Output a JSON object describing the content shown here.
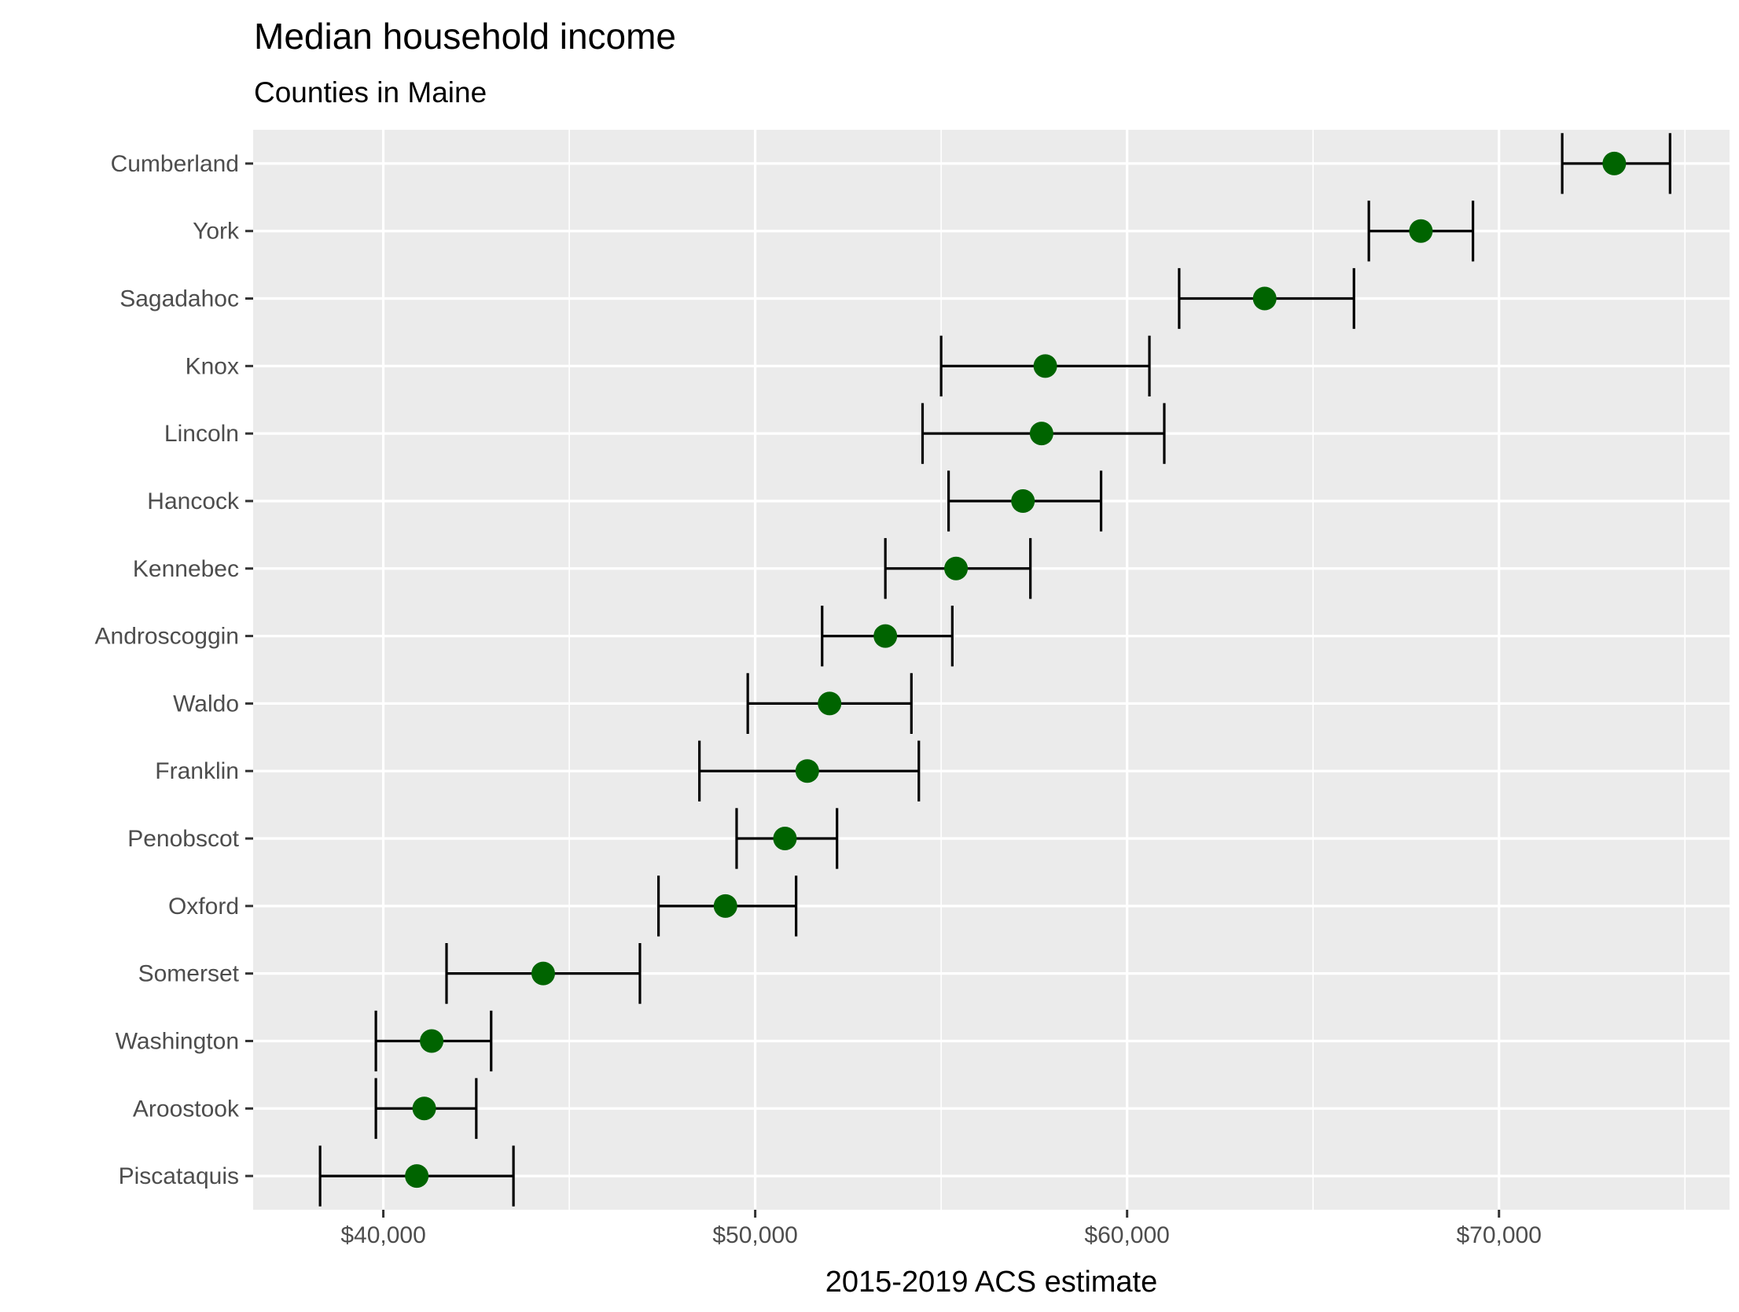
{
  "chart_data": {
    "type": "scatter",
    "variant": "dot-plot-with-error-bars",
    "title": "Median household income",
    "subtitle": "Counties in Maine",
    "xlabel": "2015-2019 ACS estimate",
    "ylabel": "",
    "xlim": [
      36500,
      76200
    ],
    "xticks": [
      40000,
      50000,
      60000,
      70000
    ],
    "xtick_labels": [
      "$40,000",
      "$50,000",
      "$60,000",
      "$70,000"
    ],
    "xminor": [
      45000,
      55000,
      65000,
      75000
    ],
    "grid": true,
    "point_color": "#006400",
    "errorbar_color": "#000000",
    "panel_background": "#ebebeb",
    "gridline_color": "#ffffff",
    "series": [
      {
        "categories": [
          "Cumberland",
          "York",
          "Sagadahoc",
          "Knox",
          "Lincoln",
          "Hancock",
          "Kennebec",
          "Androscoggin",
          "Waldo",
          "Franklin",
          "Penobscot",
          "Oxford",
          "Somerset",
          "Washington",
          "Aroostook",
          "Piscataquis"
        ],
        "values": [
          73100,
          67900,
          63700,
          57800,
          57700,
          57200,
          55400,
          53500,
          52000,
          51400,
          50800,
          49200,
          44300,
          41300,
          41100,
          40900
        ],
        "lower": [
          71700,
          66500,
          61400,
          55000,
          54500,
          55200,
          53500,
          51800,
          49800,
          48500,
          49500,
          47400,
          41700,
          39800,
          39800,
          38300
        ],
        "upper": [
          74600,
          69300,
          66100,
          60600,
          61000,
          59300,
          57400,
          55300,
          54200,
          54400,
          52200,
          51100,
          46900,
          42900,
          42500,
          43500
        ]
      }
    ]
  }
}
